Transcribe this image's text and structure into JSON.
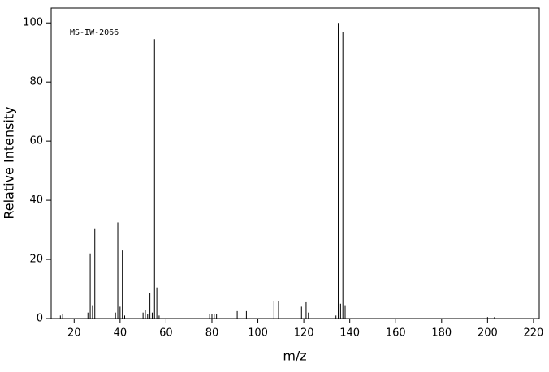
{
  "chart_data": {
    "type": "stem",
    "annotation": "MS-IW-2066",
    "xlabel": "m/z",
    "ylabel": "Relative Intensity",
    "x": [
      14,
      15,
      26,
      27,
      28,
      29,
      38,
      39,
      40,
      41,
      42,
      50,
      51,
      52,
      53,
      54,
      55,
      56,
      57,
      79,
      80,
      81,
      82,
      91,
      95,
      107,
      109,
      119,
      121,
      122,
      134,
      135,
      136,
      137,
      138,
      200,
      203
    ],
    "values": [
      1,
      1.5,
      2,
      22,
      4.5,
      30.5,
      2,
      32.5,
      4,
      23,
      1,
      2,
      3,
      1.5,
      8.5,
      2,
      94.5,
      10.5,
      1,
      1.5,
      1.5,
      1.5,
      1.5,
      2.5,
      2.5,
      6,
      6,
      4,
      5.5,
      2,
      1,
      100,
      5,
      97,
      4.5,
      0.5,
      0.5
    ],
    "color": "#000000",
    "xlim": [
      10,
      222.5
    ],
    "xticks": [
      20,
      40,
      60,
      80,
      100,
      120,
      140,
      160,
      180,
      200,
      220
    ],
    "ylim": [
      0,
      105
    ],
    "yticks": [
      0,
      20,
      40,
      60,
      80,
      100
    ]
  }
}
